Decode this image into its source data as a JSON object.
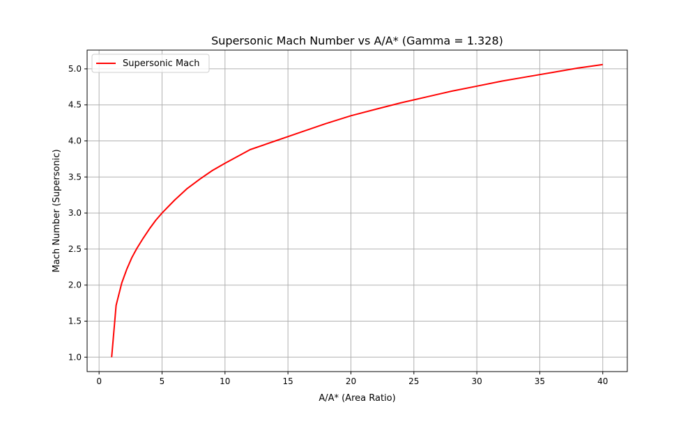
{
  "chart_data": {
    "type": "line",
    "title": "Supersonic Mach Number vs A/A* (Gamma = 1.328)",
    "xlabel": "A/A* (Area Ratio)",
    "ylabel": "Mach Number (Supersonic)",
    "xlim": [
      -0.95,
      41.95
    ],
    "ylim": [
      0.8,
      5.26
    ],
    "xticks": [
      0,
      5,
      10,
      15,
      20,
      25,
      30,
      35,
      40
    ],
    "xtick_labels": [
      "0",
      "5",
      "10",
      "15",
      "20",
      "25",
      "30",
      "35",
      "40"
    ],
    "yticks": [
      1.0,
      1.5,
      2.0,
      2.5,
      3.0,
      3.5,
      4.0,
      4.5,
      5.0
    ],
    "ytick_labels": [
      "1.0",
      "1.5",
      "2.0",
      "2.5",
      "3.0",
      "3.5",
      "4.0",
      "4.5",
      "5.0"
    ],
    "grid": true,
    "legend_position": "upper-left",
    "series": [
      {
        "name": "Supersonic Mach",
        "color": "#ff0000",
        "x": [
          1.0,
          1.35,
          1.8,
          2.2,
          2.6,
          3.0,
          3.5,
          4.0,
          4.5,
          5.0,
          6.0,
          7.0,
          8.0,
          9.0,
          10.0,
          12.0,
          14.0,
          15.0,
          16.0,
          18.0,
          20.0,
          22.0,
          24.0,
          25.0,
          26.0,
          28.0,
          30.0,
          32.0,
          34.0,
          35.0,
          36.0,
          38.0,
          40.0
        ],
        "y": [
          1.0,
          1.72,
          2.03,
          2.22,
          2.38,
          2.51,
          2.65,
          2.78,
          2.9,
          3.0,
          3.18,
          3.34,
          3.47,
          3.59,
          3.69,
          3.88,
          4.0,
          4.06,
          4.12,
          4.24,
          4.35,
          4.44,
          4.53,
          4.57,
          4.61,
          4.69,
          4.76,
          4.83,
          4.89,
          4.92,
          4.95,
          5.01,
          5.06
        ]
      }
    ]
  }
}
